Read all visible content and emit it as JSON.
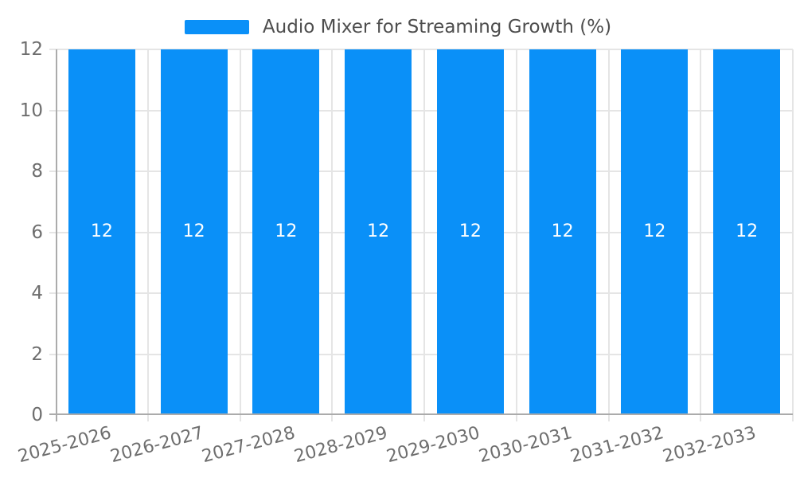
{
  "chart_data": {
    "type": "bar",
    "title": "Audio Mixer for Streaming Growth (%)",
    "categories": [
      "2025-2026",
      "2026-2027",
      "2027-2028",
      "2028-2029",
      "2029-2030",
      "2030-2031",
      "2031-2032",
      "2032-2033"
    ],
    "series": [
      {
        "name": "Audio Mixer for Streaming Growth (%)",
        "values": [
          12,
          12,
          12,
          12,
          12,
          12,
          12,
          12
        ]
      }
    ],
    "value_labels": [
      "12",
      "12",
      "12",
      "12",
      "12",
      "12",
      "12",
      "12"
    ],
    "xlabel": "",
    "ylabel": "",
    "ylim": [
      0,
      12
    ],
    "yticks": [
      0,
      2,
      4,
      6,
      8,
      10,
      12
    ],
    "grid": true,
    "legend_position": "top-center",
    "x_label_rotation_deg": -15
  },
  "colors": {
    "bar": "#0a90f8",
    "grid": "#e5e5e5",
    "axis": "#ababab",
    "tick_label": "#6e6e6e",
    "legend_text": "#4d4d4d",
    "value_label": "#ffffff",
    "background": "#ffffff"
  }
}
